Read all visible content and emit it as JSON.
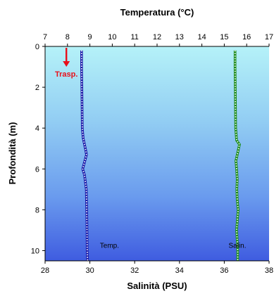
{
  "chart_data": {
    "type": "line",
    "title": "Temperatura (°C)",
    "xlabel_top": "Temperatura (°C)",
    "xlabel_bottom": "Salinità (PSU)",
    "ylabel": "Profondità (m)",
    "x_top_range": [
      7,
      17
    ],
    "x_top_ticks": [
      "7",
      "8",
      "9",
      "10",
      "11",
      "12",
      "13",
      "14",
      "15",
      "16",
      "17"
    ],
    "x_bottom_range": [
      28,
      38
    ],
    "x_bottom_ticks": [
      "28",
      "30",
      "32",
      "34",
      "36",
      "38"
    ],
    "y_range": [
      0,
      10.5
    ],
    "y_inverted": true,
    "y_ticks": [
      "0",
      "2",
      "4",
      "6",
      "8",
      "10"
    ],
    "grid": false,
    "background": "gradient light-cyan to blue",
    "series": [
      {
        "label": "Temp.",
        "axis": "top",
        "color": "#1a1aa8",
        "points": [
          [
            8.63,
            0.2
          ],
          [
            8.63,
            1.0
          ],
          [
            8.64,
            2.0
          ],
          [
            8.65,
            3.0
          ],
          [
            8.66,
            4.0
          ],
          [
            8.7,
            4.5
          ],
          [
            8.8,
            5.0
          ],
          [
            8.85,
            5.3
          ],
          [
            8.75,
            5.7
          ],
          [
            8.68,
            6.0
          ],
          [
            8.76,
            6.3
          ],
          [
            8.84,
            7.0
          ],
          [
            8.86,
            8.0
          ],
          [
            8.87,
            9.0
          ],
          [
            8.88,
            10.0
          ],
          [
            8.9,
            10.5
          ]
        ]
      },
      {
        "label": "Salin.",
        "axis": "bottom",
        "color": "#1a8a1a",
        "points": [
          [
            36.48,
            0.2
          ],
          [
            36.48,
            1.0
          ],
          [
            36.49,
            2.0
          ],
          [
            36.5,
            3.0
          ],
          [
            36.51,
            4.0
          ],
          [
            36.55,
            4.6
          ],
          [
            36.68,
            4.8
          ],
          [
            36.6,
            5.2
          ],
          [
            36.52,
            5.6
          ],
          [
            36.55,
            6.0
          ],
          [
            36.58,
            6.5
          ],
          [
            36.56,
            7.0
          ],
          [
            36.58,
            7.5
          ],
          [
            36.62,
            8.0
          ],
          [
            36.58,
            8.6
          ],
          [
            36.55,
            9.0
          ],
          [
            36.58,
            9.5
          ],
          [
            36.6,
            10.0
          ],
          [
            36.6,
            10.5
          ]
        ]
      }
    ],
    "annotation": {
      "label": "Trasp.",
      "depth": 1.0,
      "temp_x": 7.95,
      "color": "#e8101a"
    }
  }
}
